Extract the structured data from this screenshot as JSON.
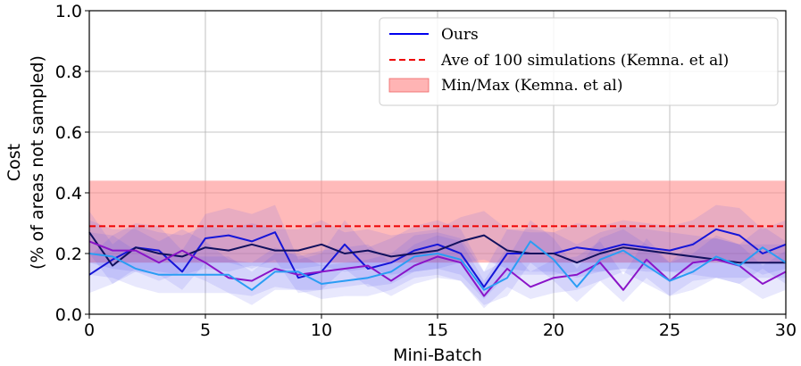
{
  "chart_data": {
    "type": "line",
    "xlabel": "Mini-Batch",
    "ylabel_lines": [
      "Cost",
      "(% of areas not sampled)"
    ],
    "xlim": [
      0,
      30
    ],
    "ylim": [
      0.0,
      1.0
    ],
    "xticks": [
      "0",
      "5",
      "10",
      "15",
      "20",
      "25",
      "30"
    ],
    "yticks": [
      "0.0",
      "0.2",
      "0.4",
      "0.6",
      "0.8",
      "1.0"
    ],
    "grid": true,
    "legend_position": "top-right",
    "legend": [
      {
        "label": "Ours",
        "style": "line",
        "color": "#0000ee"
      },
      {
        "label": "Ave of 100 simulations (Kemna. et al)",
        "style": "dashed",
        "color": "#ee0000"
      },
      {
        "label": "Min/Max (Kemna. et al)",
        "style": "band",
        "color": "#f4a6a6"
      }
    ],
    "baseline": {
      "average": 0.29,
      "min": 0.17,
      "max": 0.44,
      "color": "#ee0000",
      "band_color": "#ff8c8c"
    },
    "x": [
      0,
      1,
      2,
      3,
      4,
      5,
      6,
      7,
      8,
      9,
      10,
      11,
      12,
      13,
      14,
      15,
      16,
      17,
      18,
      19,
      20,
      21,
      22,
      23,
      24,
      25,
      26,
      27,
      28,
      29,
      30
    ],
    "series": [
      {
        "color": "#1515d8",
        "values": [
          0.13,
          0.18,
          0.22,
          0.21,
          0.14,
          0.25,
          0.26,
          0.24,
          0.27,
          0.12,
          0.14,
          0.23,
          0.15,
          0.17,
          0.21,
          0.23,
          0.2,
          0.09,
          0.2,
          0.2,
          0.2,
          0.22,
          0.21,
          0.23,
          0.22,
          0.21,
          0.23,
          0.28,
          0.26,
          0.2,
          0.23
        ],
        "band_lower": [
          0.07,
          0.1,
          0.14,
          0.13,
          0.08,
          0.17,
          0.17,
          0.15,
          0.18,
          0.07,
          0.08,
          0.15,
          0.09,
          0.1,
          0.14,
          0.15,
          0.13,
          0.05,
          0.13,
          0.13,
          0.13,
          0.14,
          0.14,
          0.15,
          0.14,
          0.14,
          0.15,
          0.19,
          0.17,
          0.13,
          0.15
        ],
        "band_upper": [
          0.19,
          0.26,
          0.3,
          0.29,
          0.21,
          0.33,
          0.35,
          0.33,
          0.36,
          0.18,
          0.2,
          0.31,
          0.22,
          0.25,
          0.29,
          0.31,
          0.28,
          0.14,
          0.28,
          0.28,
          0.27,
          0.3,
          0.29,
          0.31,
          0.3,
          0.29,
          0.31,
          0.36,
          0.35,
          0.28,
          0.31
        ]
      },
      {
        "color": "#11115e",
        "values": [
          0.27,
          0.16,
          0.22,
          0.2,
          0.19,
          0.22,
          0.21,
          0.23,
          0.21,
          0.21,
          0.23,
          0.2,
          0.21,
          0.19,
          0.2,
          0.21,
          0.24,
          0.26,
          0.21,
          0.2,
          0.2,
          0.17,
          0.2,
          0.22,
          0.21,
          0.2,
          0.19,
          0.18,
          0.17,
          0.17,
          0.17
        ],
        "band_lower": [
          0.2,
          0.1,
          0.15,
          0.14,
          0.13,
          0.15,
          0.14,
          0.16,
          0.15,
          0.15,
          0.16,
          0.14,
          0.15,
          0.13,
          0.14,
          0.15,
          0.17,
          0.18,
          0.15,
          0.14,
          0.14,
          0.12,
          0.14,
          0.15,
          0.15,
          0.14,
          0.13,
          0.12,
          0.12,
          0.12,
          0.12
        ],
        "band_upper": [
          0.34,
          0.23,
          0.29,
          0.27,
          0.26,
          0.29,
          0.28,
          0.3,
          0.28,
          0.28,
          0.31,
          0.27,
          0.28,
          0.26,
          0.27,
          0.28,
          0.32,
          0.34,
          0.28,
          0.27,
          0.27,
          0.23,
          0.27,
          0.29,
          0.28,
          0.27,
          0.26,
          0.25,
          0.23,
          0.23,
          0.23
        ]
      },
      {
        "color": "#8a14c8",
        "values": [
          0.24,
          0.21,
          0.21,
          0.17,
          0.21,
          0.17,
          0.12,
          0.11,
          0.15,
          0.13,
          0.14,
          0.15,
          0.16,
          0.11,
          0.16,
          0.19,
          0.17,
          0.06,
          0.15,
          0.09,
          0.12,
          0.13,
          0.17,
          0.08,
          0.18,
          0.11,
          0.17,
          0.18,
          0.16,
          0.1,
          0.14
        ],
        "band_lower": [
          0.17,
          0.15,
          0.14,
          0.11,
          0.14,
          0.11,
          0.07,
          0.06,
          0.09,
          0.08,
          0.08,
          0.09,
          0.1,
          0.06,
          0.1,
          0.12,
          0.11,
          0.02,
          0.09,
          0.05,
          0.07,
          0.08,
          0.11,
          0.04,
          0.12,
          0.06,
          0.11,
          0.12,
          0.1,
          0.05,
          0.08
        ],
        "band_upper": [
          0.31,
          0.28,
          0.28,
          0.24,
          0.28,
          0.24,
          0.18,
          0.17,
          0.22,
          0.19,
          0.21,
          0.22,
          0.23,
          0.17,
          0.23,
          0.26,
          0.24,
          0.11,
          0.22,
          0.14,
          0.18,
          0.19,
          0.24,
          0.13,
          0.25,
          0.17,
          0.24,
          0.25,
          0.23,
          0.16,
          0.21
        ]
      },
      {
        "color": "#2a9df4",
        "values": [
          0.2,
          0.19,
          0.15,
          0.13,
          0.13,
          0.13,
          0.13,
          0.08,
          0.14,
          0.14,
          0.1,
          0.11,
          0.12,
          0.14,
          0.19,
          0.2,
          0.18,
          0.08,
          0.12,
          0.24,
          0.18,
          0.09,
          0.18,
          0.21,
          0.16,
          0.11,
          0.14,
          0.19,
          0.16,
          0.22,
          0.17
        ],
        "band_lower": [
          0.13,
          0.12,
          0.09,
          0.07,
          0.07,
          0.07,
          0.07,
          0.03,
          0.08,
          0.08,
          0.05,
          0.06,
          0.06,
          0.08,
          0.12,
          0.13,
          0.11,
          0.03,
          0.06,
          0.17,
          0.11,
          0.04,
          0.11,
          0.14,
          0.1,
          0.06,
          0.08,
          0.12,
          0.1,
          0.15,
          0.1
        ],
        "band_upper": [
          0.27,
          0.26,
          0.21,
          0.19,
          0.19,
          0.19,
          0.19,
          0.14,
          0.2,
          0.2,
          0.16,
          0.17,
          0.18,
          0.2,
          0.26,
          0.27,
          0.25,
          0.14,
          0.18,
          0.31,
          0.25,
          0.15,
          0.25,
          0.28,
          0.23,
          0.17,
          0.2,
          0.26,
          0.23,
          0.29,
          0.24
        ]
      }
    ]
  }
}
